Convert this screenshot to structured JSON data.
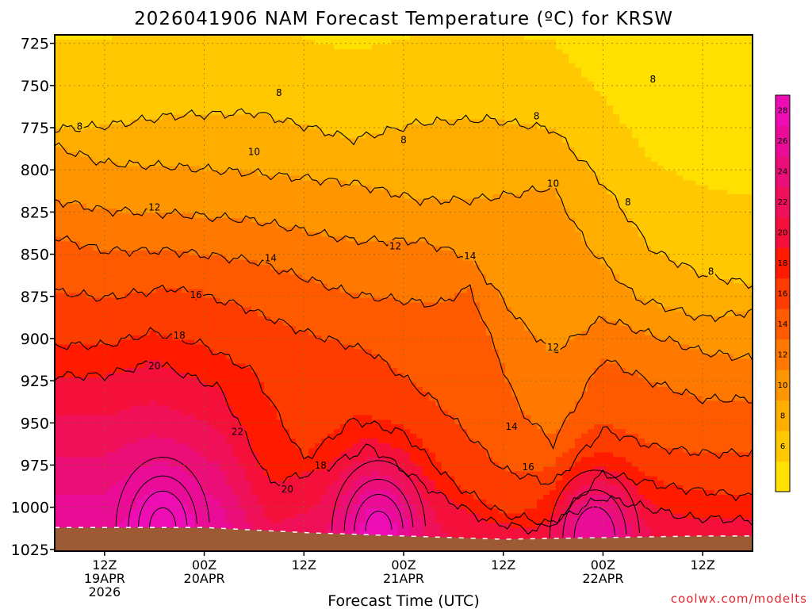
{
  "chart_data": {
    "type": "heatmap",
    "title": "2026041906 NAM Forecast Temperature (ºC) for KRSW",
    "xlabel": "Forecast Time (UTC)",
    "ylabel": "",
    "credit": "coolwx.com/modelts",
    "y_axis": {
      "ticks": [
        "725",
        "750",
        "775",
        "800",
        "825",
        "850",
        "875",
        "900",
        "925",
        "950",
        "975",
        "1000",
        "1025"
      ],
      "range": [
        720,
        1026
      ]
    },
    "x_axis": {
      "range_hours": [
        6,
        90
      ],
      "ticks": [
        {
          "hour": 12,
          "lines": [
            "12Z",
            "19APR",
            "2026"
          ]
        },
        {
          "hour": 24,
          "lines": [
            "00Z",
            "20APR"
          ]
        },
        {
          "hour": 36,
          "lines": [
            "12Z"
          ]
        },
        {
          "hour": 48,
          "lines": [
            "00Z",
            "21APR"
          ]
        },
        {
          "hour": 60,
          "lines": [
            "12Z"
          ]
        },
        {
          "hour": 72,
          "lines": [
            "00Z",
            "22APR"
          ]
        },
        {
          "hour": 84,
          "lines": [
            "12Z"
          ]
        }
      ]
    },
    "colorbar": {
      "levels": [
        4,
        6,
        8,
        10,
        12,
        14,
        16,
        18,
        20,
        22,
        24,
        26,
        28,
        30
      ],
      "tick_labels": [
        "6",
        "8",
        "10",
        "12",
        "14",
        "16",
        "18",
        "20",
        "22",
        "24",
        "26",
        "28"
      ],
      "colors": [
        "#ffe000",
        "#ffc800",
        "#ffae00",
        "#ff9600",
        "#ff7800",
        "#ff5a00",
        "#ff3c00",
        "#ff1a00",
        "#f5103c",
        "#f0105a",
        "#ec0e78",
        "#ea0c96",
        "#ee0cb4"
      ]
    },
    "surface_pressure": [
      {
        "hour": 6,
        "hpa": 1012
      },
      {
        "hour": 24,
        "hpa": 1012
      },
      {
        "hour": 36,
        "hpa": 1015
      },
      {
        "hour": 48,
        "hpa": 1017
      },
      {
        "hour": 60,
        "hpa": 1019
      },
      {
        "hour": 72,
        "hpa": 1018
      },
      {
        "hour": 84,
        "hpa": 1017
      },
      {
        "hour": 90,
        "hpa": 1017
      }
    ],
    "isotherm_profiles": [
      {
        "temp": 8,
        "points": [
          [
            6,
            776
          ],
          [
            12,
            774
          ],
          [
            20,
            768
          ],
          [
            30,
            766
          ],
          [
            42,
            782
          ],
          [
            50,
            772
          ],
          [
            58,
            770
          ],
          [
            66,
            776
          ],
          [
            72,
            808
          ],
          [
            78,
            848
          ],
          [
            84,
            862
          ],
          [
            90,
            868
          ]
        ]
      },
      {
        "temp": 10,
        "points": [
          [
            6,
            786
          ],
          [
            12,
            796
          ],
          [
            20,
            798
          ],
          [
            30,
            802
          ],
          [
            42,
            808
          ],
          [
            50,
            818
          ],
          [
            56,
            818
          ],
          [
            62,
            814
          ],
          [
            66,
            810
          ],
          [
            70,
            844
          ],
          [
            76,
            876
          ],
          [
            84,
            888
          ],
          [
            90,
            884
          ]
        ]
      },
      {
        "temp": 12,
        "points": [
          [
            6,
            818
          ],
          [
            12,
            824
          ],
          [
            20,
            826
          ],
          [
            30,
            830
          ],
          [
            42,
            842
          ],
          [
            50,
            842
          ],
          [
            56,
            852
          ],
          [
            62,
            890
          ],
          [
            66,
            908
          ],
          [
            72,
            888
          ],
          [
            78,
            898
          ],
          [
            84,
            908
          ],
          [
            90,
            912
          ]
        ]
      },
      {
        "temp": 14,
        "points": [
          [
            6,
            840
          ],
          [
            12,
            848
          ],
          [
            20,
            848
          ],
          [
            30,
            854
          ],
          [
            42,
            874
          ],
          [
            52,
            880
          ],
          [
            56,
            870
          ],
          [
            62,
            942
          ],
          [
            66,
            962
          ],
          [
            72,
            912
          ],
          [
            78,
            926
          ],
          [
            84,
            936
          ],
          [
            90,
            936
          ]
        ]
      },
      {
        "temp": 16,
        "points": [
          [
            6,
            872
          ],
          [
            12,
            876
          ],
          [
            20,
            870
          ],
          [
            28,
            880
          ],
          [
            36,
            896
          ],
          [
            44,
            908
          ],
          [
            52,
            938
          ],
          [
            60,
            978
          ],
          [
            66,
            986
          ],
          [
            72,
            954
          ],
          [
            78,
            964
          ],
          [
            84,
            968
          ],
          [
            90,
            968
          ]
        ]
      },
      {
        "temp": 18,
        "points": [
          [
            6,
            904
          ],
          [
            12,
            904
          ],
          [
            18,
            896
          ],
          [
            24,
            904
          ],
          [
            30,
            920
          ],
          [
            36,
            972
          ],
          [
            42,
            948
          ],
          [
            48,
            956
          ],
          [
            54,
            986
          ],
          [
            60,
            1004
          ],
          [
            66,
            1010
          ],
          [
            72,
            980
          ],
          [
            80,
            988
          ],
          [
            90,
            994
          ]
        ]
      },
      {
        "temp": 20,
        "points": [
          [
            6,
            922
          ],
          [
            12,
            922
          ],
          [
            18,
            914
          ],
          [
            26,
            930
          ],
          [
            32,
            986
          ],
          [
            38,
            978
          ],
          [
            44,
            964
          ],
          [
            52,
            992
          ],
          [
            58,
            1008
          ],
          [
            64,
            1014
          ],
          [
            72,
            994
          ],
          [
            82,
            1006
          ],
          [
            90,
            1008
          ]
        ]
      }
    ],
    "warm_cores": [
      {
        "hour": 19,
        "hpa": 1012,
        "max_temp": 29
      },
      {
        "hour": 45,
        "hpa": 1014,
        "max_temp": 29
      },
      {
        "hour": 71,
        "hpa": 1018,
        "max_temp": 28
      }
    ],
    "contour_labels": [
      {
        "text": "8",
        "hour": 9,
        "hpa": 774
      },
      {
        "text": "8",
        "hour": 33,
        "hpa": 754
      },
      {
        "text": "8",
        "hour": 48,
        "hpa": 782
      },
      {
        "text": "8",
        "hour": 64,
        "hpa": 768
      },
      {
        "text": "8",
        "hour": 78,
        "hpa": 746
      },
      {
        "text": "8",
        "hour": 75,
        "hpa": 819
      },
      {
        "text": "8",
        "hour": 85,
        "hpa": 860
      },
      {
        "text": "10",
        "hour": 30,
        "hpa": 789
      },
      {
        "text": "10",
        "hour": 66,
        "hpa": 808
      },
      {
        "text": "12",
        "hour": 18,
        "hpa": 822
      },
      {
        "text": "12",
        "hour": 47,
        "hpa": 845
      },
      {
        "text": "12",
        "hour": 66,
        "hpa": 905
      },
      {
        "text": "14",
        "hour": 32,
        "hpa": 852
      },
      {
        "text": "14",
        "hour": 56,
        "hpa": 851
      },
      {
        "text": "14",
        "hour": 61,
        "hpa": 952
      },
      {
        "text": "16",
        "hour": 23,
        "hpa": 874
      },
      {
        "text": "16",
        "hour": 63,
        "hpa": 976
      },
      {
        "text": "18",
        "hour": 21,
        "hpa": 898
      },
      {
        "text": "18",
        "hour": 38,
        "hpa": 975
      },
      {
        "text": "20",
        "hour": 18,
        "hpa": 916
      },
      {
        "text": "20",
        "hour": 34,
        "hpa": 989
      },
      {
        "text": "22",
        "hour": 28,
        "hpa": 955
      }
    ]
  }
}
